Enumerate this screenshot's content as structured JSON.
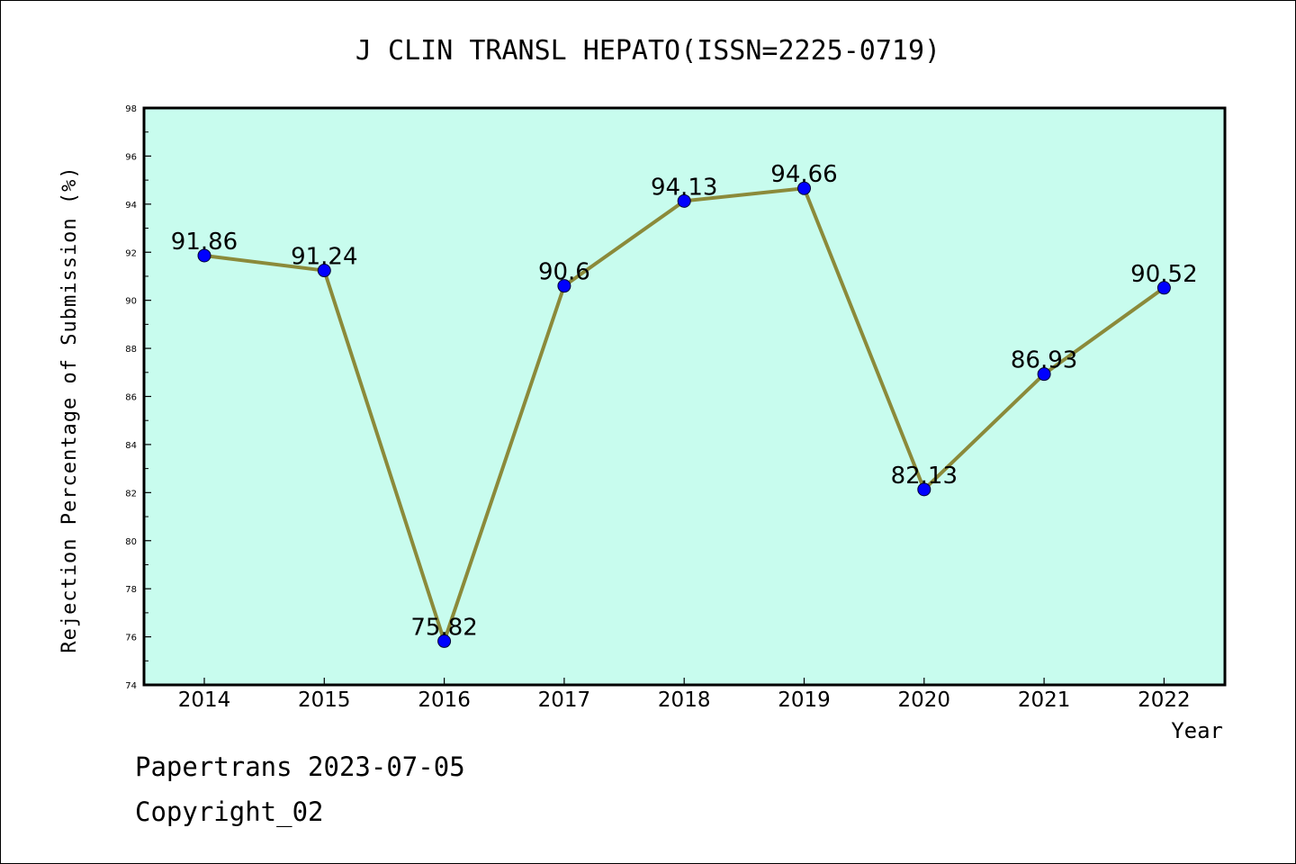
{
  "footer": {
    "line1": "Papertrans 2023-07-05",
    "line2": "Copyright_02"
  },
  "chart_data": {
    "type": "line",
    "title": "J CLIN TRANSL HEPATO(ISSN=2225-0719)",
    "xlabel": "Year",
    "ylabel": "Rejection Percentage of Submission (%)",
    "categories": [
      "2014",
      "2015",
      "2016",
      "2017",
      "2018",
      "2019",
      "2020",
      "2021",
      "2022"
    ],
    "series": [
      {
        "values": [
          91.86,
          91.24,
          75.82,
          90.6,
          94.13,
          94.66,
          82.13,
          86.93,
          90.52
        ],
        "labels": [
          "91.86",
          "91.24",
          "75.82",
          "90.6",
          "94.13",
          "94.66",
          "82.13",
          "86.93",
          "90.52"
        ]
      }
    ],
    "ylim": [
      74,
      98
    ],
    "yticks": [
      "74",
      "76",
      "78",
      "80",
      "82",
      "84",
      "86",
      "88",
      "90",
      "92",
      "94",
      "96",
      "98"
    ],
    "grid": false,
    "colors": {
      "plot_background": "#c8fcee",
      "line": "#8b8a3a",
      "marker": "#0000ff"
    }
  }
}
